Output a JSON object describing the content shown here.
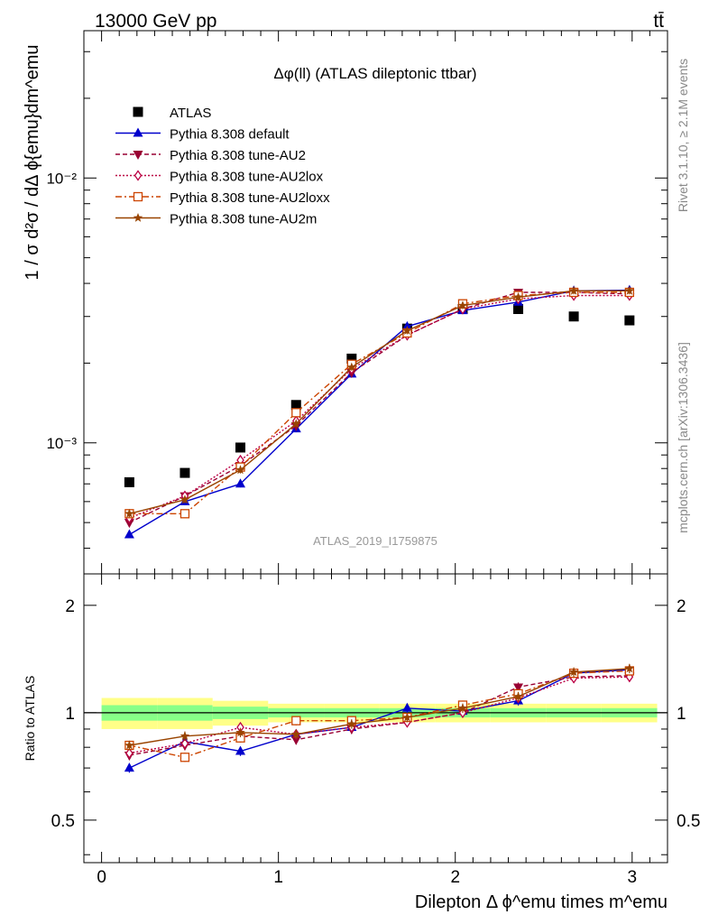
{
  "header": {
    "left": "13000 GeV pp",
    "right": "tt̄"
  },
  "side_labels": {
    "rivet": "Rivet 3.1.10, ≥ 2.1M events",
    "mcplots": "mcplots.cern.ch [arXiv:1306.3436]"
  },
  "watermark": "ATLAS_2019_I1759875",
  "chart_data": [
    {
      "type": "scatter",
      "title": "Δφ(ll) (ATLAS dileptonic ttbar)",
      "ylabel": "1 / σ d²σ / dΔ ϕ{emu}dm^emu",
      "xlim": [
        -0.1,
        3.2
      ],
      "ylim": [
        0.00032,
        0.036
      ],
      "yscale": "log",
      "ytick_labels": [
        "10⁻³",
        "10⁻²"
      ],
      "x": [
        0.157,
        0.471,
        0.785,
        1.1,
        1.414,
        1.728,
        2.042,
        2.356,
        2.67,
        2.985
      ],
      "legend_position": "top-left",
      "series": [
        {
          "name": "ATLAS",
          "color": "#000000",
          "marker": "square",
          "line": "none",
          "values": [
            0.00071,
            0.00077,
            0.00096,
            0.00139,
            0.00208,
            0.0027,
            0.0032,
            0.0032,
            0.003,
            0.0029
          ]
        },
        {
          "name": "Pythia 8.308 default",
          "color": "#0000cc",
          "marker": "triangle-up",
          "line": "solid",
          "values": [
            0.00045,
            0.0006,
            0.0007,
            0.00113,
            0.00182,
            0.00275,
            0.00316,
            0.0034,
            0.00375,
            0.00377
          ]
        },
        {
          "name": "Pythia 8.308 tune-AU2",
          "color": "#990033",
          "marker": "triangle-down",
          "line": "dashed",
          "values": [
            0.0005,
            0.00063,
            0.00082,
            0.00116,
            0.00184,
            0.00255,
            0.0032,
            0.0037,
            0.0037,
            0.00365
          ]
        },
        {
          "name": "Pythia 8.308 tune-AU2lox",
          "color": "#bb0044",
          "marker": "diamond-open",
          "line": "dotted",
          "values": [
            0.00052,
            0.00063,
            0.00086,
            0.00121,
            0.0019,
            0.00255,
            0.0032,
            0.0035,
            0.0036,
            0.0036
          ]
        },
        {
          "name": "Pythia 8.308 tune-AU2loxx",
          "color": "#cc4400",
          "marker": "square-open",
          "line": "dashdot",
          "values": [
            0.00054,
            0.00054,
            0.00081,
            0.0013,
            0.00198,
            0.0026,
            0.00335,
            0.0036,
            0.0037,
            0.0037
          ]
        },
        {
          "name": "Pythia 8.308 tune-AU2m",
          "color": "#994400",
          "marker": "star",
          "line": "solid",
          "values": [
            0.00054,
            0.00061,
            0.00079,
            0.00118,
            0.00193,
            0.00265,
            0.0033,
            0.00355,
            0.00375,
            0.00375
          ]
        }
      ]
    },
    {
      "type": "scatter",
      "xlabel": "Dilepton Δ ϕ^emu times m^emu",
      "ylabel": "Ratio to ATLAS",
      "xlim": [
        -0.1,
        3.2
      ],
      "ylim": [
        0.38,
        2.45
      ],
      "xticks": [
        0,
        1,
        2,
        3
      ],
      "yticks": [
        0.5,
        1,
        2
      ],
      "x": [
        0.157,
        0.471,
        0.785,
        1.1,
        1.414,
        1.728,
        2.042,
        2.356,
        2.67,
        2.985
      ],
      "band_edges": [
        0,
        0.314,
        0.628,
        0.942,
        1.257,
        1.571,
        1.885,
        2.199,
        2.513,
        2.827,
        3.1416
      ],
      "band_inner": [
        0.05,
        0.05,
        0.04,
        0.03,
        0.03,
        0.03,
        0.03,
        0.03,
        0.03,
        0.03
      ],
      "band_outer": [
        0.1,
        0.1,
        0.08,
        0.06,
        0.06,
        0.06,
        0.06,
        0.06,
        0.06,
        0.06
      ],
      "series": [
        {
          "name": "Pythia 8.308 default",
          "color": "#0000cc",
          "marker": "triangle-up",
          "line": "solid",
          "values": [
            0.7,
            0.83,
            0.78,
            0.87,
            0.91,
            1.03,
            1.01,
            1.08,
            1.29,
            1.32
          ]
        },
        {
          "name": "Pythia 8.308 tune-AU2",
          "color": "#990033",
          "marker": "triangle-down",
          "line": "dashed",
          "values": [
            0.76,
            0.81,
            0.86,
            0.84,
            0.9,
            0.94,
            1.0,
            1.18,
            1.26,
            1.27
          ]
        },
        {
          "name": "Pythia 8.308 tune-AU2lox",
          "color": "#bb0044",
          "marker": "diamond-open",
          "line": "dotted",
          "values": [
            0.77,
            0.82,
            0.91,
            0.87,
            0.91,
            0.94,
            1.0,
            1.1,
            1.25,
            1.26
          ]
        },
        {
          "name": "Pythia 8.308 tune-AU2loxx",
          "color": "#cc4400",
          "marker": "square-open",
          "line": "dashdot",
          "values": [
            0.81,
            0.75,
            0.85,
            0.95,
            0.95,
            0.97,
            1.05,
            1.13,
            1.29,
            1.31
          ]
        },
        {
          "name": "Pythia 8.308 tune-AU2m",
          "color": "#994400",
          "marker": "star",
          "line": "solid",
          "values": [
            0.81,
            0.86,
            0.88,
            0.87,
            0.93,
            0.97,
            1.03,
            1.11,
            1.3,
            1.33
          ]
        }
      ]
    }
  ]
}
